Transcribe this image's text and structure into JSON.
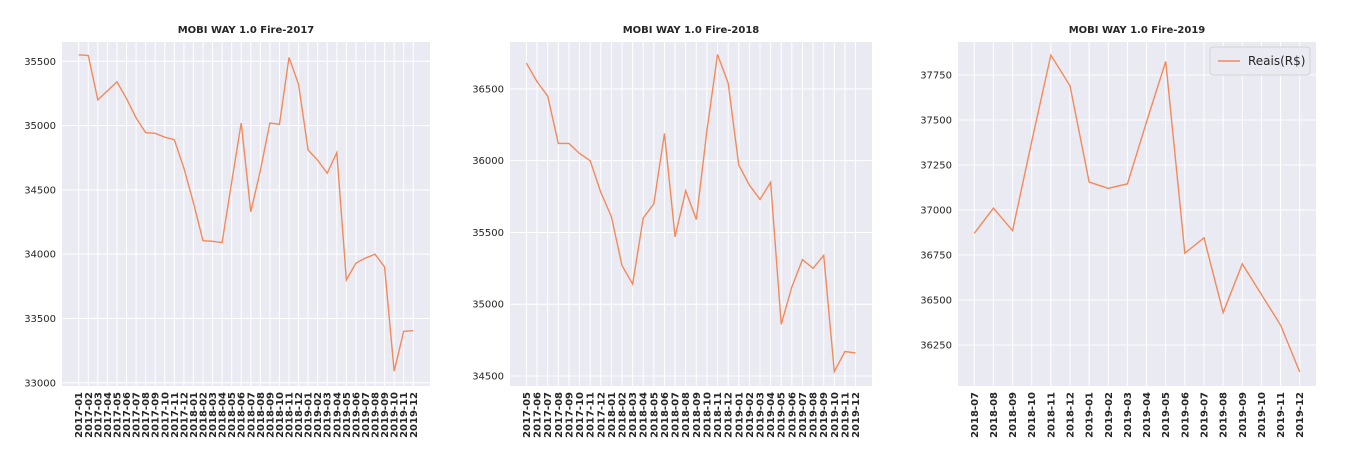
{
  "chart_data": [
    {
      "type": "line",
      "title": "MOBI WAY 1.0 Fire-2017",
      "categories": [
        "2017-01",
        "2017-02",
        "2017-03",
        "2017-04",
        "2017-05",
        "2017-06",
        "2017-07",
        "2017-08",
        "2017-09",
        "2017-10",
        "2017-11",
        "2017-12",
        "2018-01",
        "2018-02",
        "2018-03",
        "2018-04",
        "2018-05",
        "2018-06",
        "2018-07",
        "2018-08",
        "2018-09",
        "2018-10",
        "2018-11",
        "2018-12",
        "2019-01",
        "2019-02",
        "2019-03",
        "2019-04",
        "2019-05",
        "2019-06",
        "2019-07",
        "2019-08",
        "2019-09",
        "2019-10",
        "2019-11",
        "2019-12"
      ],
      "series": [
        {
          "color": "#f28a5c",
          "values": [
            35550,
            35545,
            35200,
            35270,
            35340,
            35210,
            35060,
            34945,
            34940,
            34910,
            34890,
            34670,
            34400,
            34105,
            34100,
            34090,
            34560,
            35020,
            34330,
            34650,
            35020,
            35010,
            35530,
            35320,
            34810,
            34730,
            34630,
            34790,
            33800,
            33930,
            33970,
            34000,
            33900,
            33090,
            33400,
            33405
          ]
        }
      ],
      "ylim": [
        32975,
        35650
      ],
      "yticks": [
        33000,
        33500,
        34000,
        34500,
        35000,
        35500
      ],
      "grid": true
    },
    {
      "type": "line",
      "title": "MOBI WAY 1.0 Fire-2018",
      "categories": [
        "2017-05",
        "2017-06",
        "2017-07",
        "2017-08",
        "2017-09",
        "2017-10",
        "2017-11",
        "2017-12",
        "2018-01",
        "2018-02",
        "2018-03",
        "2018-04",
        "2018-05",
        "2018-06",
        "2018-07",
        "2018-08",
        "2018-09",
        "2018-10",
        "2018-11",
        "2018-12",
        "2019-01",
        "2019-02",
        "2019-03",
        "2019-04",
        "2019-05",
        "2019-06",
        "2019-07",
        "2019-08",
        "2019-09",
        "2019-10",
        "2019-11",
        "2019-12"
      ],
      "series": [
        {
          "color": "#f28a5c",
          "values": [
            36680,
            36550,
            36450,
            36120,
            36120,
            36050,
            36000,
            35780,
            35610,
            35270,
            35140,
            35600,
            35700,
            36190,
            35470,
            35790,
            35590,
            36210,
            36740,
            36540,
            35970,
            35830,
            35730,
            35850,
            34860,
            35120,
            35310,
            35250,
            35340,
            34530,
            34670,
            34660
          ]
        }
      ],
      "ylim": [
        34430,
        36827
      ],
      "yticks": [
        34500,
        35000,
        35500,
        36000,
        36500
      ],
      "grid": true
    },
    {
      "type": "line",
      "title": "MOBI WAY 1.0 Fire-2019",
      "categories": [
        "2018-07",
        "2018-08",
        "2018-09",
        "2018-10",
        "2018-11",
        "2018-12",
        "2019-01",
        "2019-02",
        "2019-03",
        "2019-04",
        "2019-05",
        "2019-06",
        "2019-07",
        "2019-08",
        "2019-09",
        "2019-10",
        "2019-11",
        "2019-12"
      ],
      "series": [
        {
          "name": "Reais(R$)",
          "color": "#f28a5c",
          "values": [
            36870,
            37010,
            36885,
            37380,
            37860,
            37690,
            37155,
            37120,
            37145,
            37490,
            37825,
            36760,
            36845,
            36430,
            36700,
            36530,
            36360,
            36100
          ]
        }
      ],
      "ylim": [
        36022,
        37933
      ],
      "yticks": [
        36250,
        36500,
        36750,
        37000,
        37250,
        37500,
        37750
      ],
      "grid": true,
      "legend": "upper right"
    }
  ]
}
